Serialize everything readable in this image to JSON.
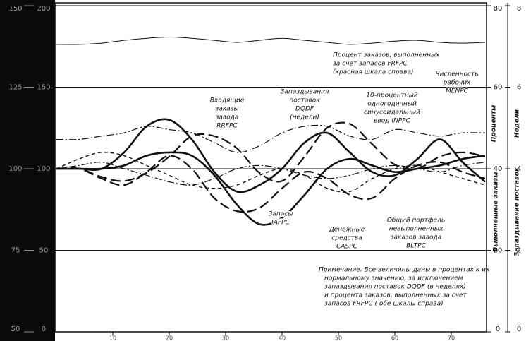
{
  "chart_data": {
    "type": "line",
    "x": [
      0,
      4,
      8,
      12,
      16,
      20,
      24,
      28,
      32,
      36,
      40,
      44,
      48,
      52,
      56,
      60,
      64,
      68,
      72,
      76
    ],
    "xlim": [
      0,
      76
    ],
    "xticks": [
      10,
      20,
      30,
      40,
      50,
      60,
      70
    ],
    "ylim": [
      50,
      150
    ],
    "yticks": [
      50,
      75,
      100,
      125,
      150
    ],
    "y3lim": [
      0,
      200
    ],
    "y3ticks": [
      0,
      50,
      100,
      150,
      200
    ],
    "y2lim": [
      0,
      80
    ],
    "y2ticks": [
      0,
      20,
      40,
      60,
      80
    ],
    "y4lim": [
      0,
      8
    ],
    "y4ticks": [
      0,
      2,
      4,
      6,
      8
    ],
    "grid": true,
    "right_axis_titles": [
      "Проценты",
      "Недели",
      "Выполненные заказы",
      "Запаздывание поставок"
    ],
    "series": [
      {
        "name": [
          "Процент заказов, выполненных",
          "за счет запасов FRFPC",
          "(красная шкала справа)"
        ],
        "axis": "y2",
        "color": "#111",
        "style": "thin",
        "values": [
          70.5,
          70.5,
          70.8,
          71.5,
          72,
          72.3,
          72,
          71.5,
          71,
          71.5,
          72,
          71.5,
          71,
          70.5,
          70.8,
          71.3,
          71.5,
          71,
          70.8,
          71
        ]
      },
      {
        "name": [
          "Входящие",
          "заказы",
          "завода",
          "RRFPC"
        ],
        "color": "#111",
        "style": "thick",
        "values": [
          100,
          100,
          100,
          105,
          113,
          115,
          109,
          99,
          93,
          95,
          100,
          108,
          111,
          105,
          99,
          98,
          103,
          109,
          102,
          96
        ]
      },
      {
        "name": [
          "Запаздывания",
          "поставок",
          "DQDF",
          "(недели)"
        ],
        "axis": "y4",
        "color": "#111",
        "style": "longdash",
        "values": [
          4,
          4,
          3.8,
          3.7,
          3.9,
          4.3,
          4.8,
          4.8,
          4.5,
          3.9,
          3.7,
          4.3,
          5,
          5.1,
          4.6,
          4.1,
          4,
          4.3,
          4.4,
          4.3
        ]
      },
      {
        "name": [
          "10-процентный",
          "одногодичный",
          "синусоидальный",
          "ввод INPPC"
        ],
        "color": "#111",
        "style": "dashdot",
        "values": [
          109,
          109,
          110,
          111,
          113,
          112,
          111,
          108,
          105,
          107,
          111,
          113,
          113,
          110,
          109,
          112,
          111,
          110,
          111,
          111
        ]
      },
      {
        "name": [
          "Численность",
          "рабочих",
          "MENPC"
        ],
        "color": "#111",
        "style": "dashdot",
        "values": [
          100,
          101,
          102,
          100,
          98,
          96,
          95,
          97,
          100,
          101,
          100,
          98,
          97,
          98,
          100,
          101,
          100,
          99,
          101,
          102
        ]
      },
      {
        "name": [
          "Запасы",
          "IAFPC"
        ],
        "color": "#111",
        "style": "thick",
        "values": [
          100,
          100,
          100,
          101,
          104,
          105,
          104,
          98,
          89,
          83,
          85,
          92,
          100,
          103,
          101,
          99,
          100,
          101,
          103,
          104
        ]
      },
      {
        "name": [
          "Денежные",
          "средства",
          "CASPC"
        ],
        "color": "#111",
        "style": "longdash",
        "values": [
          100,
          100,
          97,
          95,
          99,
          104,
          100,
          91,
          87,
          88,
          94,
          99,
          97,
          92,
          91,
          97,
          101,
          102,
          99,
          97
        ]
      },
      {
        "name": [
          "Общий портфель",
          "невыполненных",
          "заказов завода",
          "BLTPC"
        ],
        "color": "#111",
        "style": "shortdash",
        "values": [
          100,
          103,
          105,
          104,
          101,
          98,
          95,
          94,
          95,
          98,
          100,
          98,
          94,
          93,
          97,
          100,
          101,
          99,
          97,
          95
        ]
      }
    ],
    "note": [
      "Примечание.  Все величины даны в процентах к их",
      "нормальному значению, за исключением",
      "запаздывания поставок DQDF (в неделях)",
      "и процента заказов, выполненных за счет",
      "запасов FRFPC ( обе шкалы справа)"
    ]
  }
}
